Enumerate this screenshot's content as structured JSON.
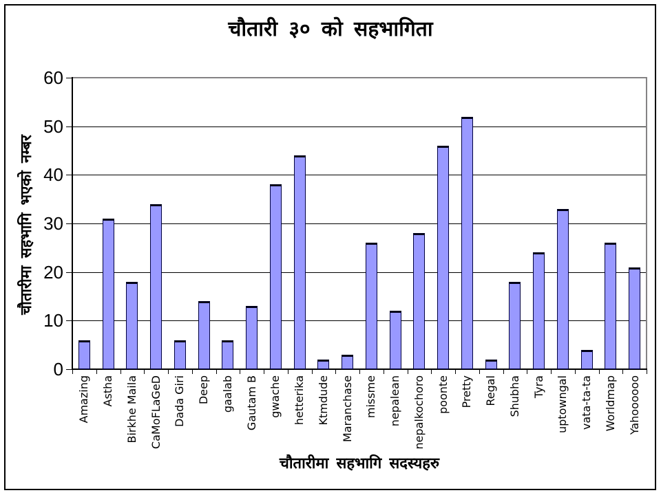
{
  "chart_data": {
    "type": "bar",
    "title": "चौतारी ३० को सहभागिता",
    "xlabel": "चौतारीमा सहभागि सदस्यहरु",
    "ylabel": "चौतारीमा सहभागि भएको नम्बर",
    "categories": [
      "Amazing",
      "Astha",
      "Birkhe Maila",
      "CaMoFLaGeD",
      "Dada Giri",
      "Deep",
      "gaalab",
      "Gautam B",
      "gwache",
      "hetterika",
      "Ktmdude",
      "Maranchase",
      "missme",
      "nepalean",
      "nepalkochoro",
      "poonte",
      "Pretty",
      "Regal",
      "Shubha",
      "Tyra",
      "uptowngal",
      "vata-ta-ta",
      "Worldmap",
      "Yahoooooo"
    ],
    "values": [
      6,
      31,
      18,
      34,
      6,
      14,
      6,
      13,
      38,
      44,
      2,
      3,
      26,
      12,
      28,
      46,
      52,
      2,
      18,
      24,
      33,
      4,
      26,
      21
    ],
    "ylim": [
      0,
      60
    ],
    "yticks": [
      0,
      10,
      20,
      30,
      40,
      50,
      60
    ],
    "grid": true,
    "legend": "none"
  },
  "colors": {
    "background": "#ffffff",
    "bar_fill": "#9999ff",
    "bar_border": "#000040",
    "gridline": "#000000",
    "axis": "#000000",
    "plot_border_gray": "#848284",
    "outer_frame": "#000000",
    "text": "#000000"
  }
}
